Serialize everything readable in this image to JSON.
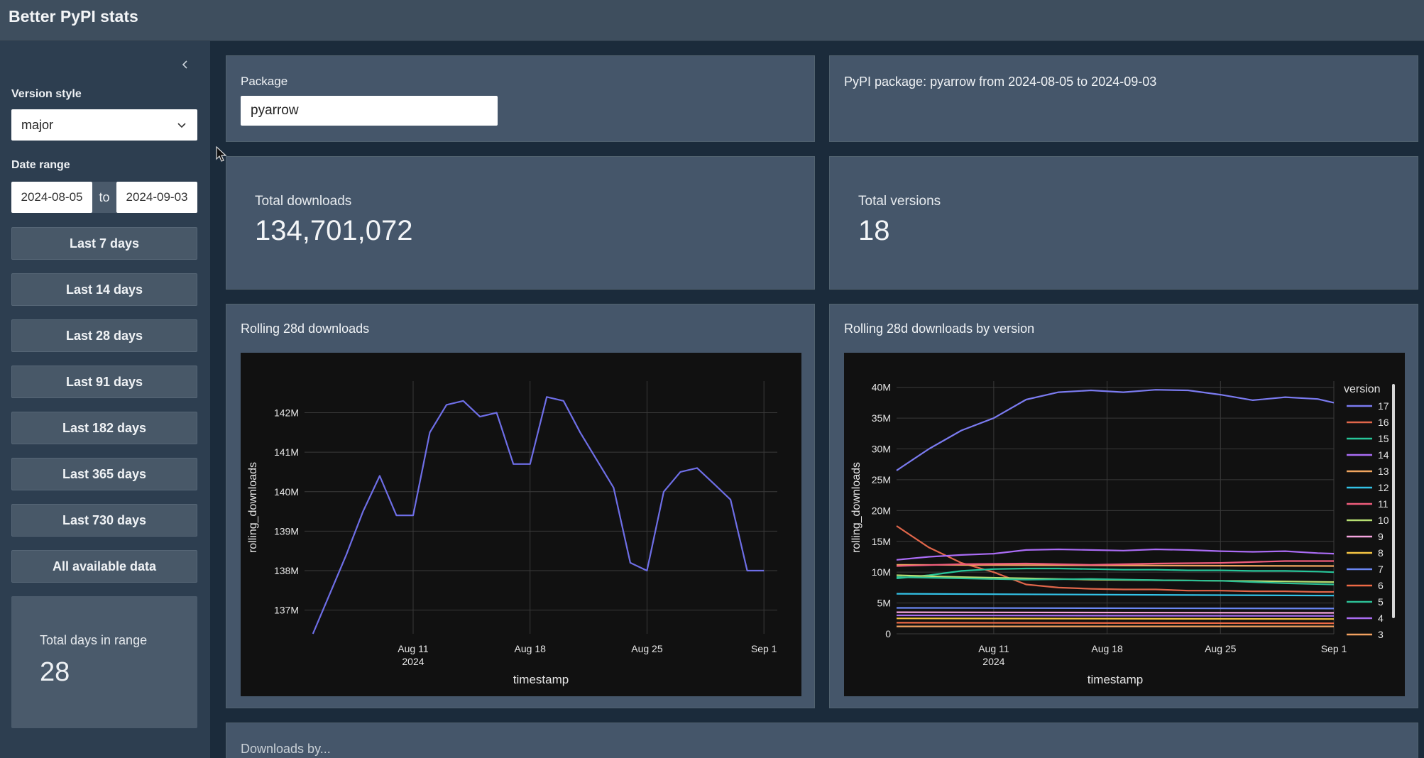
{
  "app": {
    "title": "Better PyPI stats"
  },
  "sidebar": {
    "version_style": {
      "label": "Version style",
      "value": "major"
    },
    "date_range": {
      "label": "Date range",
      "start": "2024-08-05",
      "separator": "to",
      "end": "2024-09-03"
    },
    "quick_ranges": [
      "Last 7 days",
      "Last 14 days",
      "Last 28 days",
      "Last 91 days",
      "Last 182 days",
      "Last 365 days",
      "Last 730 days",
      "All available data"
    ],
    "total_days": {
      "label": "Total days in range",
      "value": "28"
    }
  },
  "package_card": {
    "label": "Package",
    "value": "pyarrow"
  },
  "header_card": {
    "text": "PyPI package: pyarrow from 2024-08-05 to 2024-09-03"
  },
  "total_downloads": {
    "label": "Total downloads",
    "value": "134,701,072"
  },
  "total_versions": {
    "label": "Total versions",
    "value": "18"
  },
  "downloads_by": {
    "title": "Downloads by..."
  },
  "colors": {
    "background": "#1b2b3b",
    "card": "#45566a",
    "plot_bg": "#111111",
    "accent": "#7b7bf0"
  },
  "chart_data": [
    {
      "type": "line",
      "title": "Rolling 28d downloads",
      "xlabel": "timestamp",
      "ylabel": "rolling_downloads",
      "x_ticks": [
        "Aug 11",
        "Aug 18",
        "Aug 25",
        "Sep 1"
      ],
      "x_tick_sub": [
        "2024",
        "",
        "",
        ""
      ],
      "x_start": "2024-08-05",
      "y_ticks": [
        "137M",
        "138M",
        "139M",
        "140M",
        "141M",
        "142M"
      ],
      "y_tick_values": [
        137,
        138,
        139,
        140,
        141,
        142
      ],
      "ylim": [
        136.4,
        142.8
      ],
      "xlim": [
        -0.5,
        27.8
      ],
      "grid": true,
      "series": [
        {
          "color": "#6e6ee6",
          "x": [
            0,
            1,
            2,
            3,
            4,
            5,
            6,
            7,
            8,
            9,
            10,
            11,
            12,
            13,
            14,
            15,
            16,
            17,
            18,
            19,
            20,
            21,
            22,
            23,
            24,
            25,
            26,
            27
          ],
          "values": [
            136.4,
            137.4,
            138.4,
            139.5,
            140.4,
            139.4,
            139.4,
            141.5,
            142.2,
            142.3,
            141.9,
            142.0,
            140.7,
            140.7,
            142.4,
            142.3,
            141.5,
            140.8,
            140.1,
            138.2,
            138.0,
            140.0,
            140.5,
            140.6,
            140.2,
            139.8,
            138.0,
            138.0
          ]
        }
      ]
    },
    {
      "type": "line",
      "title": "Rolling 28d downloads by version",
      "xlabel": "timestamp",
      "ylabel": "rolling_downloads",
      "x_ticks": [
        "Aug 11",
        "Aug 18",
        "Aug 25",
        "Sep 1"
      ],
      "x_tick_sub": [
        "2024",
        "",
        "",
        ""
      ],
      "x_start": "2024-08-05",
      "y_ticks": [
        "0",
        "5M",
        "10M",
        "15M",
        "20M",
        "25M",
        "30M",
        "35M",
        "40M"
      ],
      "y_tick_values": [
        0,
        5,
        10,
        15,
        20,
        25,
        30,
        35,
        40
      ],
      "ylim": [
        0,
        41
      ],
      "xlim": [
        0,
        27
      ],
      "grid": true,
      "legend": {
        "title": "version",
        "position": "right"
      },
      "series": [
        {
          "name": "17",
          "color": "#7b7bf0",
          "x": [
            0,
            2,
            4,
            6,
            8,
            10,
            12,
            14,
            16,
            18,
            20,
            22,
            24,
            26,
            27
          ],
          "values": [
            26.5,
            30,
            33,
            35,
            38,
            39.2,
            39.5,
            39.2,
            39.6,
            39.5,
            38.8,
            37.9,
            38.4,
            38.1,
            37.5
          ]
        },
        {
          "name": "16",
          "color": "#e0664a",
          "x": [
            0,
            2,
            4,
            6,
            8,
            10,
            12,
            14,
            16,
            18,
            20,
            22,
            24,
            26,
            27
          ],
          "values": [
            17.5,
            14,
            11.5,
            10,
            8,
            7.5,
            7.3,
            7.2,
            7.2,
            7.0,
            7.0,
            6.9,
            6.9,
            6.8,
            6.8
          ]
        },
        {
          "name": "15",
          "color": "#27c69a",
          "x": [
            0,
            2,
            4,
            6,
            8,
            10,
            12,
            14,
            16,
            18,
            20,
            22,
            24,
            26,
            27
          ],
          "values": [
            9,
            9.5,
            10.2,
            10.5,
            10.6,
            10.6,
            10.5,
            10.4,
            10.4,
            10.3,
            10.3,
            10.2,
            10.2,
            10.1,
            10.0
          ]
        },
        {
          "name": "14",
          "color": "#aa6cf5",
          "x": [
            0,
            2,
            4,
            6,
            8,
            10,
            12,
            14,
            16,
            18,
            20,
            22,
            24,
            26,
            27
          ],
          "values": [
            12,
            12.5,
            12.8,
            13,
            13.6,
            13.7,
            13.6,
            13.5,
            13.7,
            13.6,
            13.4,
            13.3,
            13.4,
            13.1,
            13.0
          ]
        },
        {
          "name": "13",
          "color": "#f0a560",
          "x": [
            0,
            27
          ],
          "values": [
            11.2,
            11.0
          ]
        },
        {
          "name": "12",
          "color": "#33c3e8",
          "x": [
            0,
            27
          ],
          "values": [
            6.5,
            6.2
          ]
        },
        {
          "name": "11",
          "color": "#ef5d7c",
          "x": [
            0,
            4,
            8,
            12,
            16,
            20,
            24,
            27
          ],
          "values": [
            11.0,
            11.3,
            11.4,
            11.2,
            11.4,
            11.5,
            11.8,
            11.8
          ]
        },
        {
          "name": "10",
          "color": "#b7df73",
          "x": [
            0,
            4,
            8,
            12,
            16,
            20,
            24,
            27
          ],
          "values": [
            9.5,
            9.2,
            9.0,
            8.8,
            8.7,
            8.6,
            8.5,
            8.4
          ]
        },
        {
          "name": "9",
          "color": "#f7a6e0",
          "x": [
            0,
            27
          ],
          "values": [
            3.5,
            3.4
          ]
        },
        {
          "name": "8",
          "color": "#f5c543",
          "x": [
            0,
            27
          ],
          "values": [
            2.5,
            2.4
          ]
        },
        {
          "name": "7",
          "color": "#6a86f2",
          "x": [
            0,
            27
          ],
          "values": [
            4.2,
            4.1
          ]
        },
        {
          "name": "6",
          "color": "#ef6a45",
          "x": [
            0,
            27
          ],
          "values": [
            1.8,
            1.7
          ]
        },
        {
          "name": "5",
          "color": "#2cbf95",
          "x": [
            0,
            4,
            8,
            12,
            16,
            20,
            24,
            27
          ],
          "values": [
            9.2,
            9.0,
            8.8,
            8.9,
            8.7,
            8.6,
            8.2,
            8.0
          ]
        },
        {
          "name": "4",
          "color": "#a96cf0",
          "x": [
            0,
            27
          ],
          "values": [
            3.0,
            2.9
          ]
        },
        {
          "name": "3",
          "color": "#f3a261",
          "x": [
            0,
            27
          ],
          "values": [
            1.2,
            1.2
          ]
        }
      ]
    }
  ]
}
